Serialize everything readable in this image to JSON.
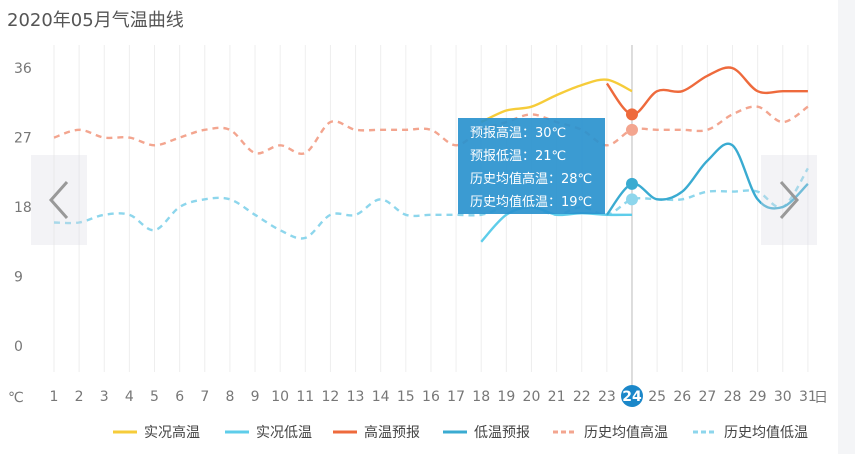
{
  "title": "2020年05月气温曲线",
  "chart_data": {
    "type": "line",
    "y_unit": "℃",
    "x_unit": "日",
    "ylim": [
      0,
      36
    ],
    "y_ticks": [
      0,
      9,
      18,
      27,
      36
    ],
    "x": [
      1,
      2,
      3,
      4,
      5,
      6,
      7,
      8,
      9,
      10,
      11,
      12,
      13,
      14,
      15,
      16,
      17,
      18,
      19,
      20,
      21,
      22,
      23,
      24,
      25,
      26,
      27,
      28,
      29,
      30,
      31
    ],
    "highlight_x": 24,
    "series": [
      {
        "name": "实况高温",
        "color": "#f6cc3a",
        "dash": false,
        "points": [
          [
            18,
            29
          ],
          [
            19,
            30.5
          ],
          [
            20,
            31
          ],
          [
            21,
            32.5
          ],
          [
            22,
            33.8
          ],
          [
            23,
            34.5
          ],
          [
            24,
            33
          ]
        ]
      },
      {
        "name": "实况低温",
        "color": "#5ecdea",
        "dash": false,
        "points": [
          [
            18,
            13.5
          ],
          [
            19,
            17
          ],
          [
            20,
            18
          ],
          [
            21,
            17
          ],
          [
            22,
            17.2
          ],
          [
            23,
            17
          ],
          [
            24,
            17
          ]
        ]
      },
      {
        "name": "高温预报",
        "color": "#ee6a3c",
        "dash": false,
        "points": [
          [
            23,
            34
          ],
          [
            24,
            30
          ],
          [
            25,
            33
          ],
          [
            26,
            33
          ],
          [
            27,
            35
          ],
          [
            28,
            36
          ],
          [
            29,
            33
          ],
          [
            30,
            33
          ],
          [
            31,
            33
          ]
        ]
      },
      {
        "name": "低温预报",
        "color": "#3aabd1",
        "dash": false,
        "points": [
          [
            23,
            17
          ],
          [
            24,
            21
          ],
          [
            25,
            19
          ],
          [
            26,
            20
          ],
          [
            27,
            24
          ],
          [
            28,
            26
          ],
          [
            29,
            19
          ],
          [
            30,
            18
          ],
          [
            31,
            21
          ]
        ]
      },
      {
        "name": "历史均值高温",
        "color": "#f3a58f",
        "dash": true,
        "points": [
          [
            1,
            27
          ],
          [
            2,
            28
          ],
          [
            3,
            27
          ],
          [
            4,
            27
          ],
          [
            5,
            26
          ],
          [
            6,
            27
          ],
          [
            7,
            28
          ],
          [
            8,
            28
          ],
          [
            9,
            25
          ],
          [
            10,
            26
          ],
          [
            11,
            25
          ],
          [
            12,
            29
          ],
          [
            13,
            28
          ],
          [
            14,
            28
          ],
          [
            15,
            28
          ],
          [
            16,
            28
          ],
          [
            17,
            26
          ],
          [
            18,
            28
          ],
          [
            19,
            29
          ],
          [
            20,
            30
          ],
          [
            21,
            29
          ],
          [
            22,
            28
          ],
          [
            23,
            26
          ],
          [
            24,
            28
          ],
          [
            25,
            28
          ],
          [
            26,
            28
          ],
          [
            27,
            28
          ],
          [
            28,
            30
          ],
          [
            29,
            31
          ],
          [
            30,
            29
          ],
          [
            31,
            31
          ]
        ]
      },
      {
        "name": "历史均值低温",
        "color": "#8dd6ec",
        "dash": true,
        "points": [
          [
            1,
            16
          ],
          [
            2,
            16
          ],
          [
            3,
            17
          ],
          [
            4,
            17
          ],
          [
            5,
            15
          ],
          [
            6,
            18
          ],
          [
            7,
            19
          ],
          [
            8,
            19
          ],
          [
            9,
            17
          ],
          [
            10,
            15
          ],
          [
            11,
            14
          ],
          [
            12,
            17
          ],
          [
            13,
            17
          ],
          [
            14,
            19
          ],
          [
            15,
            17
          ],
          [
            16,
            17
          ],
          [
            17,
            17
          ],
          [
            18,
            17
          ],
          [
            19,
            18
          ],
          [
            20,
            18
          ],
          [
            21,
            17
          ],
          [
            22,
            18
          ],
          [
            23,
            17
          ],
          [
            24,
            19
          ],
          [
            25,
            19
          ],
          [
            26,
            19
          ],
          [
            27,
            20
          ],
          [
            28,
            20
          ],
          [
            29,
            20
          ],
          [
            30,
            18
          ],
          [
            31,
            23
          ]
        ]
      }
    ]
  },
  "tooltip": {
    "line1": "预报高温：30℃",
    "line2": "预报低温：21℃",
    "line3": "历史均值高温：28℃",
    "line4": "历史均值低温：19℃"
  },
  "nav": {
    "prev_icon": "chevron-left-icon",
    "next_icon": "chevron-right-icon"
  }
}
